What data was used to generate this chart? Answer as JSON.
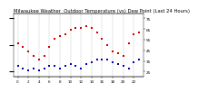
{
  "title": "Milwaukee Weather  Outdoor Temperature (vs) Dew Point (Last 24 Hours)",
  "temp_color": "#cc0000",
  "dew_color": "#0000bb",
  "background_color": "#ffffff",
  "grid_color": "#999999",
  "ylabel_color": "#000000",
  "hours": [
    0,
    1,
    2,
    3,
    4,
    5,
    6,
    7,
    8,
    9,
    10,
    11,
    12,
    13,
    14,
    15,
    16,
    17,
    18,
    19,
    20,
    21,
    22,
    23
  ],
  "temp": [
    52,
    48,
    44,
    40,
    36,
    40,
    48,
    56,
    58,
    60,
    64,
    66,
    66,
    68,
    66,
    62,
    56,
    50,
    44,
    42,
    40,
    52,
    60,
    62
  ],
  "dew": [
    30,
    28,
    26,
    28,
    26,
    28,
    30,
    30,
    28,
    30,
    32,
    30,
    28,
    32,
    34,
    36,
    36,
    36,
    34,
    32,
    30,
    28,
    34,
    36
  ],
  "ylim": [
    20,
    80
  ],
  "ytick_values": [
    25,
    35,
    45,
    55,
    65,
    75
  ],
  "ytick_labels": [
    "25",
    "35",
    "45",
    "55",
    "65",
    "75"
  ],
  "xtick_positions": [
    0,
    2,
    4,
    6,
    8,
    10,
    12,
    14,
    16,
    18,
    20,
    22
  ],
  "xtick_labels": [
    "0",
    "2",
    "4",
    "6",
    "8",
    "10",
    "12",
    "14",
    "16",
    "18",
    "20",
    "22"
  ],
  "title_fontsize": 3.8,
  "tick_fontsize": 3.0,
  "marker_size": 0.9,
  "dot_size": 1.8
}
